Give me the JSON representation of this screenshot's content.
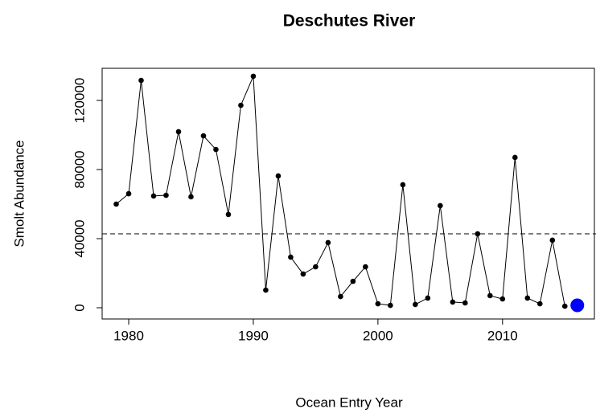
{
  "chart_data": {
    "type": "line",
    "title": "Deschutes River",
    "x_label": "Ocean Entry Year",
    "y_label": "Smolt Abundance",
    "x": [
      1979,
      1980,
      1981,
      1982,
      1983,
      1984,
      1985,
      1986,
      1987,
      1988,
      1989,
      1990,
      1991,
      1992,
      1993,
      1994,
      1995,
      1996,
      1997,
      1998,
      1999,
      2000,
      2001,
      2002,
      2003,
      2004,
      2005,
      2006,
      2007,
      2008,
      2009,
      2010,
      2011,
      2012,
      2013,
      2014,
      2015
    ],
    "values": [
      60000,
      66000,
      131600,
      64700,
      65100,
      101900,
      64200,
      99500,
      91600,
      54000,
      117200,
      134000,
      10200,
      76300,
      29300,
      19500,
      23700,
      37700,
      6500,
      15300,
      23700,
      2300,
      1400,
      71200,
      1900,
      5600,
      59100,
      3300,
      2800,
      42800,
      7000,
      5100,
      87000,
      5600,
      2300,
      39100,
      900
    ],
    "color": "#000000",
    "highlight": {
      "x": 2016,
      "value": 1400,
      "color": "#0000ff"
    },
    "reference_line": 42800,
    "xlim": [
      1977.87,
      2017.5
    ],
    "xticks": [
      1980,
      1990,
      2000,
      2010
    ],
    "ylim": [
      -6500,
      138600
    ],
    "yticks": [
      0,
      40000,
      80000,
      120000
    ]
  }
}
